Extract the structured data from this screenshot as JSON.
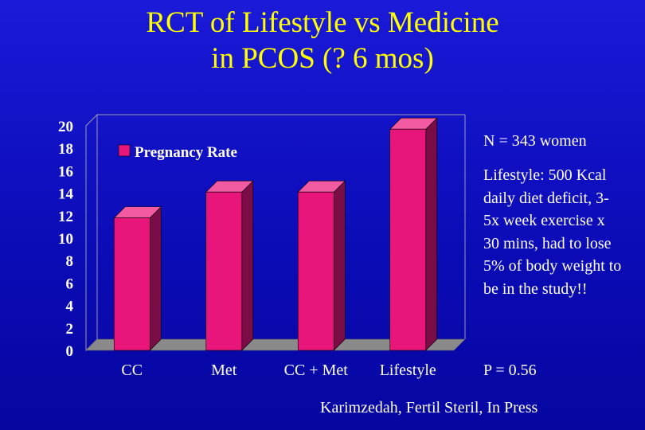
{
  "slide": {
    "title_line1": "RCT of Lifestyle vs Medicine",
    "title_line2": "in PCOS (? 6 mos)",
    "n_note": "N = 343 women",
    "lifestyle_note": "Lifestyle: 500 Kcal daily diet deficit, 3-5x week exercise x 30 mins,  had to lose 5% of body weight to be in the study!!",
    "p_value": "P = 0.56",
    "citation": "Karimzedah, Fertil Steril, In Press"
  },
  "colors": {
    "background": "#0c0cb8",
    "title": "#ffff00",
    "bar_front": "#e8157a",
    "bar_side": "#7a0c46",
    "bar_top": "#f25aa2",
    "axis_text": "#ffffff",
    "floor": "#8a8a8a"
  },
  "chart_data": {
    "type": "bar",
    "categories": [
      "CC",
      "Met",
      "CC + Met",
      "Lifestyle"
    ],
    "series": [
      {
        "name": "Pregnancy Rate",
        "values": [
          11.8,
          14.1,
          14.1,
          19.7
        ]
      }
    ],
    "ylim": [
      0,
      20
    ],
    "yticks": [
      "0",
      "2",
      "4",
      "6",
      "8",
      "10",
      "12",
      "14",
      "16",
      "18",
      "20"
    ],
    "xlabel": "",
    "ylabel": "",
    "grid": false,
    "legend": "top-left"
  }
}
